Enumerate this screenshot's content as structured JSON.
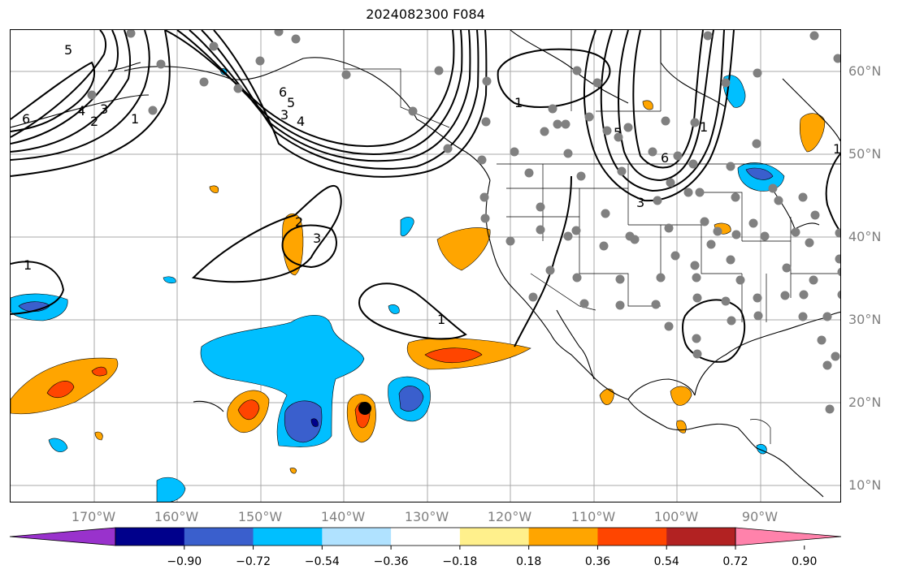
{
  "title": "2024082300 F084",
  "lat_labels": [
    "60°N",
    "50°N",
    "40°N",
    "30°N",
    "20°N",
    "10°N"
  ],
  "lon_labels": [
    "170°W",
    "160°W",
    "150°W",
    "140°W",
    "130°W",
    "120°W",
    "110°W",
    "100°W",
    "90°W"
  ],
  "colorbar": {
    "tick_labels": [
      "−0.90",
      "−0.72",
      "−0.54",
      "−0.36",
      "−0.18",
      "0.18",
      "0.36",
      "0.54",
      "0.72",
      "0.90"
    ],
    "colors": [
      "#9932cc",
      "#00008b",
      "#3a5fcd",
      "#00bfff",
      "#b0e2ff",
      "#ffffff",
      "#fff08c",
      "#ffa500",
      "#ff4500",
      "#b22222",
      "#ff82ab"
    ],
    "extend": "both"
  },
  "contour_labels": [
    "5",
    "6",
    "4",
    "3",
    "2",
    "1",
    "6",
    "5",
    "4",
    "3",
    "1",
    "5",
    "6",
    "3",
    "2",
    "3",
    "1",
    "1",
    "1",
    "1"
  ],
  "map": {
    "projection": "lat-lon",
    "lon_range": [
      "180°W",
      "80°W"
    ],
    "lat_range": [
      "8°N",
      "65°N"
    ],
    "gridlines": true,
    "coastlines": true,
    "state_borders": true,
    "station_marker_color": "#808080"
  }
}
